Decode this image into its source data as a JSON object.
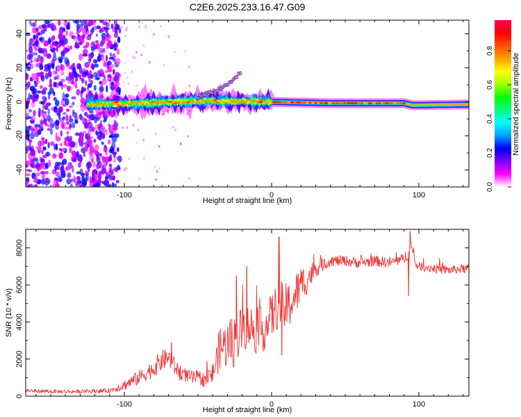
{
  "figure": {
    "title": "C2E6.2025.233.16.47.G09"
  },
  "chart_data": [
    {
      "type": "heatmap",
      "xlabel": "Height of straight line (km)",
      "ylabel": "Frequency (Hz)",
      "xlim": [
        -167,
        134
      ],
      "ylim": [
        -50,
        48
      ],
      "x_ticks": [
        -100,
        0,
        100
      ],
      "y_ticks": [
        -40,
        -20,
        0,
        20,
        40
      ],
      "colorbar": {
        "label": "Normalized spectral amplitude",
        "range": [
          0,
          0.98
        ],
        "ticks": [
          0,
          0.2,
          0.4,
          0.6,
          0.8
        ],
        "stops": [
          "#ffffff",
          "#ff00ff",
          "#8000ff",
          "#0000ff",
          "#00a0ff",
          "#00ffff",
          "#00ff80",
          "#00ff00",
          "#a0ff00",
          "#ffff00",
          "#ffa000",
          "#ff5000",
          "#ff0000",
          "#ff0050"
        ]
      },
      "features": [
        {
          "name": "noise field",
          "x_range": [
            -167,
            -103
          ],
          "freq_range": [
            -50,
            48
          ],
          "amplitude": 0.15
        },
        {
          "name": "sparse scatter",
          "x_range": [
            -103,
            -55
          ],
          "freq_range": [
            -50,
            48
          ],
          "amplitude": 0.05
        },
        {
          "name": "tone",
          "x": [
            -120,
            -100,
            -80,
            -60,
            -40,
            -20,
            0,
            40,
            90,
            96,
            134
          ],
          "freq": [
            -1.5,
            -1.2,
            -0.5,
            0.2,
            0.5,
            0.3,
            0.0,
            -0.8,
            -0.8,
            -2.0,
            -1.5
          ],
          "peak_amplitude": 0.95
        },
        {
          "name": "rising branch",
          "x": [
            -50,
            -40,
            -30,
            -20
          ],
          "freq": [
            3,
            6,
            10,
            18
          ],
          "peak_amplitude": 0.6
        }
      ]
    },
    {
      "type": "line",
      "xlabel": "Height of straight line (km)",
      "ylabel": "SNR (10 * v/v)",
      "xlim": [
        -167,
        134
      ],
      "ylim": [
        0,
        9000
      ],
      "x_ticks": [
        -100,
        0,
        100
      ],
      "y_ticks": [
        0,
        2000,
        4000,
        6000,
        8000
      ],
      "series": [
        {
          "name": "SNR",
          "color": "#ee3333",
          "x": [
            -167,
            -150,
            -130,
            -110,
            -100,
            -90,
            -80,
            -75,
            -70,
            -65,
            -60,
            -55,
            -50,
            -45,
            -40,
            -35,
            -30,
            -25,
            -20,
            -15,
            -10,
            -5,
            0,
            5,
            10,
            15,
            20,
            25,
            30,
            35,
            40,
            50,
            60,
            70,
            80,
            90,
            95,
            97,
            100,
            110,
            120,
            134
          ],
          "y": [
            300,
            250,
            250,
            300,
            600,
            1000,
            1500,
            1900,
            2100,
            1500,
            1200,
            1000,
            1000,
            900,
            1200,
            2600,
            2800,
            3000,
            3600,
            3800,
            3500,
            3600,
            4300,
            5000,
            4700,
            5300,
            6000,
            6400,
            6900,
            7100,
            7300,
            7300,
            7200,
            7300,
            7200,
            7400,
            8100,
            7200,
            7000,
            6900,
            6800,
            6900
          ],
          "noise": [
            100,
            100,
            100,
            120,
            300,
            400,
            500,
            600,
            500,
            500,
            400,
            400,
            400,
            400,
            600,
            1200,
            1300,
            1500,
            1300,
            1200,
            1300,
            1200,
            1300,
            1300,
            1400,
            1200,
            1100,
            800,
            500,
            350,
            300,
            300,
            300,
            300,
            300,
            300,
            500,
            300,
            250,
            250,
            250,
            250
          ],
          "spikes": [
            {
              "x": -68,
              "y": 2900
            },
            {
              "x": -24,
              "y": 6500
            },
            {
              "x": -17,
              "y": 7000
            },
            {
              "x": 5,
              "y": 8600
            },
            {
              "x": 7,
              "y": 2200
            },
            {
              "x": 94,
              "y": 8900
            },
            {
              "x": 93,
              "y": 5400
            }
          ]
        }
      ]
    }
  ]
}
